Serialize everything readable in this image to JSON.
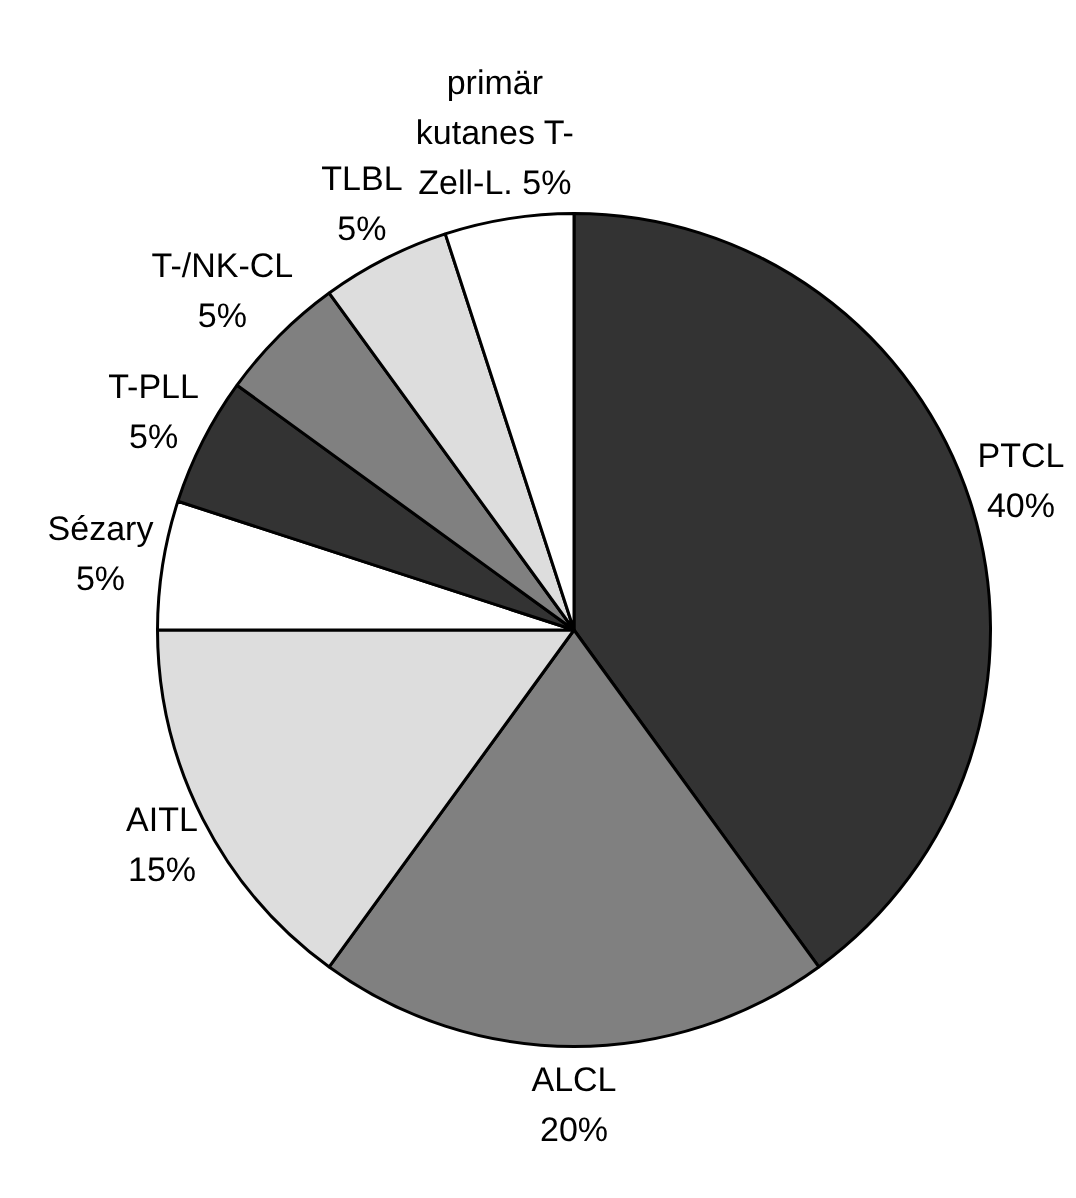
{
  "chart_data": {
    "type": "pie",
    "categories": [
      "PTCL",
      "ALCL",
      "AITL",
      "Sézary",
      "T-PLL",
      "T-/NK-CL",
      "TLBL",
      "primär kutanes T-Zell-L."
    ],
    "values": [
      40,
      20,
      15,
      5,
      5,
      5,
      5,
      5
    ],
    "value_labels": [
      "40%",
      "20%",
      "15%",
      "5%",
      "5%",
      "5%",
      "5%",
      "5%"
    ],
    "colors": [
      "#333333",
      "#808080",
      "#dddddd",
      "#ffffff",
      "#333333",
      "#808080",
      "#dddddd",
      "#ffffff"
    ]
  }
}
